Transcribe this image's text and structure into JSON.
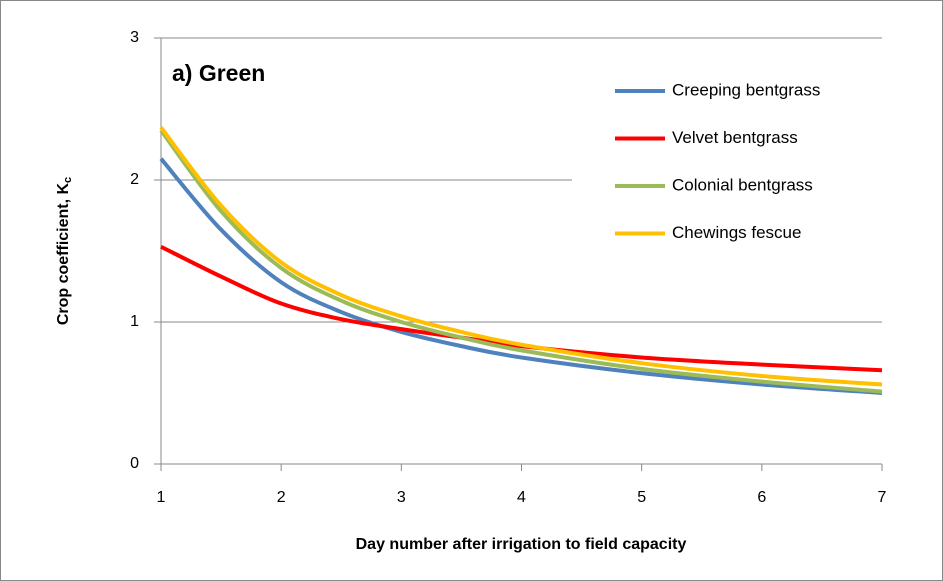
{
  "chart_data": {
    "type": "line",
    "annotation": "a) Green",
    "x_label": "Day number after irrigation to field capacity",
    "y_label": "Crop coefficient, K",
    "y_label_subscript": "c",
    "x": [
      1,
      1.5,
      2,
      2.5,
      3,
      3.5,
      4,
      5,
      6,
      7
    ],
    "series": [
      {
        "name": "Creeping bentgrass",
        "color": "#4f81bd",
        "values": [
          2.15,
          1.65,
          1.28,
          1.07,
          0.93,
          0.83,
          0.75,
          0.64,
          0.56,
          0.5
        ]
      },
      {
        "name": "Velvet bentgrass",
        "color": "#ff0000",
        "values": [
          1.53,
          1.32,
          1.13,
          1.02,
          0.95,
          0.89,
          0.83,
          0.75,
          0.7,
          0.66
        ]
      },
      {
        "name": "Colonial bentgrass",
        "color": "#9bbb59",
        "values": [
          2.35,
          1.78,
          1.38,
          1.15,
          1.0,
          0.89,
          0.8,
          0.67,
          0.58,
          0.51
        ]
      },
      {
        "name": "Chewings fescue",
        "color": "#ffc000",
        "values": [
          2.37,
          1.82,
          1.42,
          1.19,
          1.04,
          0.93,
          0.84,
          0.71,
          0.62,
          0.56
        ]
      }
    ],
    "xlim": [
      1,
      7
    ],
    "xticks": [
      1,
      2,
      3,
      4,
      5,
      6,
      7
    ],
    "ylim": [
      0,
      3
    ],
    "yticks": [
      0,
      1,
      2,
      3
    ],
    "grid": true,
    "legend": "upper right"
  }
}
